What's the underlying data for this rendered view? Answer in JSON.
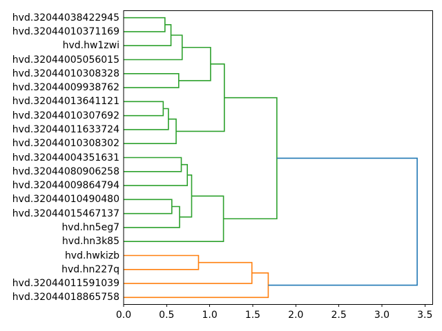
{
  "chart_data": {
    "type": "dendrogram",
    "orientation": "right",
    "title": "",
    "xlabel": "",
    "ylabel": "",
    "grid": false,
    "legend": null,
    "xlim": [
      0,
      3.59
    ],
    "xticks": [
      "0.0",
      "0.5",
      "1.0",
      "1.5",
      "2.0",
      "2.5",
      "3.0",
      "3.5"
    ],
    "xtick_values": [
      0,
      0.5,
      1.0,
      1.5,
      2.0,
      2.5,
      3.0,
      3.5
    ],
    "colors": {
      "green_cluster": "#2ca02c",
      "orange_cluster": "#ff7f0e",
      "above_threshold": "#1f77b4",
      "axis": "#000000",
      "background": "#ffffff"
    },
    "leaf_labels": [
      "hvd.32044038422945",
      "hvd.32044010371169",
      "hvd.hw1zwi",
      "hvd.32044005056015",
      "hvd.32044010308328",
      "hvd.32044009938762",
      "hvd.32044013641121",
      "hvd.32044010307692",
      "hvd.32044011633724",
      "hvd.32044010308302",
      "hvd.32044004351631",
      "hvd.32044080906258",
      "hvd.32044009864794",
      "hvd.32044010490480",
      "hvd.32044015467137",
      "hvd.hn5eg7",
      "hvd.hn3k85",
      "hvd.hwkizb",
      "hvd.hn227q",
      "hvd.32044011591039",
      "hvd.32044018865758"
    ],
    "links": [
      {
        "id": "M1",
        "children": [
          "L0",
          "L1"
        ],
        "distance": 0.48,
        "color": "green_cluster"
      },
      {
        "id": "M2",
        "children": [
          "M1",
          "L2"
        ],
        "distance": 0.55,
        "color": "green_cluster"
      },
      {
        "id": "M3",
        "children": [
          "M2",
          "L3"
        ],
        "distance": 0.68,
        "color": "green_cluster"
      },
      {
        "id": "M4",
        "children": [
          "L4",
          "L5"
        ],
        "distance": 0.64,
        "color": "green_cluster"
      },
      {
        "id": "M5",
        "children": [
          "M3",
          "M4"
        ],
        "distance": 1.01,
        "color": "green_cluster"
      },
      {
        "id": "M6",
        "children": [
          "L6",
          "L7"
        ],
        "distance": 0.46,
        "color": "green_cluster"
      },
      {
        "id": "M7",
        "children": [
          "M6",
          "L8"
        ],
        "distance": 0.52,
        "color": "green_cluster"
      },
      {
        "id": "M8",
        "children": [
          "M7",
          "L9"
        ],
        "distance": 0.61,
        "color": "green_cluster"
      },
      {
        "id": "M9",
        "children": [
          "M5",
          "M8"
        ],
        "distance": 1.17,
        "color": "green_cluster"
      },
      {
        "id": "M10",
        "children": [
          "L10",
          "L11"
        ],
        "distance": 0.67,
        "color": "green_cluster"
      },
      {
        "id": "M11",
        "children": [
          "M10",
          "L12"
        ],
        "distance": 0.74,
        "color": "green_cluster"
      },
      {
        "id": "M12",
        "children": [
          "L13",
          "L14"
        ],
        "distance": 0.56,
        "color": "green_cluster"
      },
      {
        "id": "M13",
        "children": [
          "M12",
          "L15"
        ],
        "distance": 0.65,
        "color": "green_cluster"
      },
      {
        "id": "M14",
        "children": [
          "M11",
          "M13"
        ],
        "distance": 0.79,
        "color": "green_cluster"
      },
      {
        "id": "M15",
        "children": [
          "M14",
          "L16"
        ],
        "distance": 1.16,
        "color": "green_cluster"
      },
      {
        "id": "M16",
        "children": [
          "M9",
          "M15"
        ],
        "distance": 1.78,
        "color": "green_cluster"
      },
      {
        "id": "M17",
        "children": [
          "L17",
          "L18"
        ],
        "distance": 0.87,
        "color": "orange_cluster"
      },
      {
        "id": "M18",
        "children": [
          "M17",
          "L19"
        ],
        "distance": 1.49,
        "color": "orange_cluster"
      },
      {
        "id": "M19",
        "children": [
          "M18",
          "L20"
        ],
        "distance": 1.68,
        "color": "orange_cluster"
      },
      {
        "id": "M20",
        "children": [
          "M16",
          "M19"
        ],
        "distance": 3.41,
        "color": "above_threshold"
      }
    ]
  }
}
